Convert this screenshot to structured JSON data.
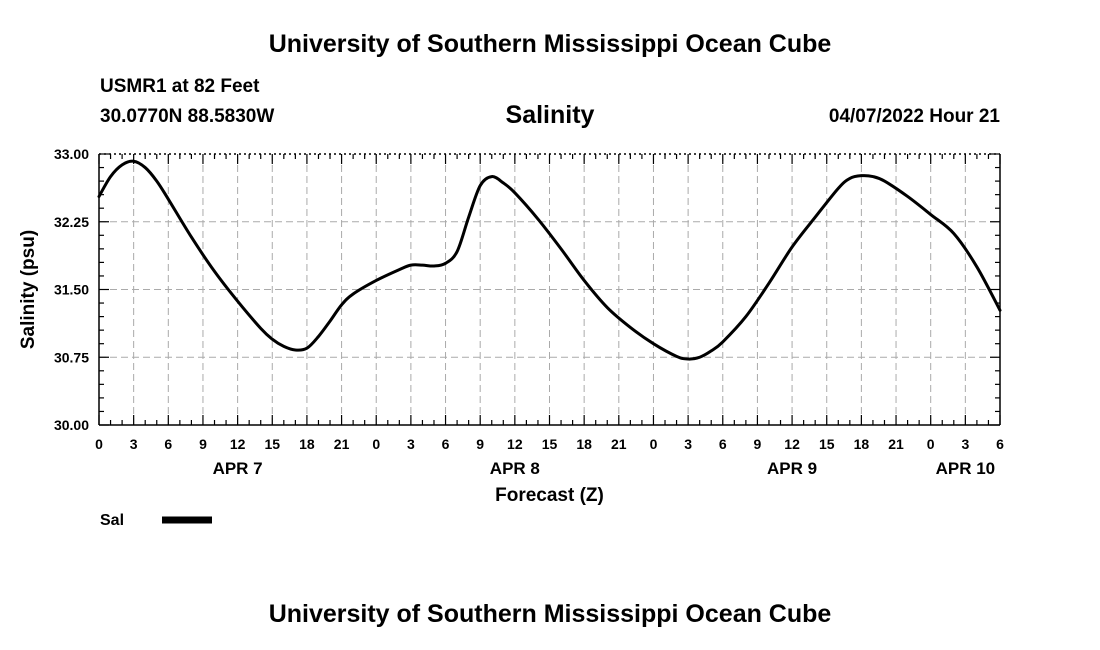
{
  "header": {
    "title": "University of Southern Mississippi Ocean Cube",
    "station": "USMR1 at 82 Feet",
    "coordinates": "30.0770N  88.5830W",
    "chart_title": "Salinity",
    "datetime": "04/07/2022 Hour 21"
  },
  "footer": {
    "title": "University of Southern Mississippi Ocean Cube"
  },
  "chart_data": {
    "type": "line",
    "title": "Salinity",
    "xlabel": "Forecast (Z)",
    "ylabel": "Salinity (psu)",
    "xlim": [
      0,
      78
    ],
    "ylim": [
      30.0,
      33.0
    ],
    "grid": true,
    "y_ticks": [
      "30.00",
      "30.75",
      "31.50",
      "32.25",
      "33.00"
    ],
    "x_tick_labels": [
      "0",
      "3",
      "6",
      "9",
      "12",
      "15",
      "18",
      "21",
      "0",
      "3",
      "6",
      "9",
      "12",
      "15",
      "18",
      "21",
      "0",
      "3",
      "6",
      "9",
      "12",
      "15",
      "18",
      "21",
      "0",
      "3",
      "6"
    ],
    "date_labels": [
      {
        "label": "APR 7",
        "hour": 12
      },
      {
        "label": "APR 8",
        "hour": 36
      },
      {
        "label": "APR 9",
        "hour": 60
      },
      {
        "label": "APR 10",
        "hour": 75
      }
    ],
    "series": [
      {
        "name": "Sal",
        "color": "#000000",
        "x": [
          0,
          1,
          2,
          3,
          4,
          5,
          6,
          8,
          10,
          12,
          14,
          15,
          16,
          17,
          18,
          19,
          20,
          21,
          22,
          24,
          26,
          27,
          28,
          29,
          30,
          31,
          32,
          33,
          34,
          35,
          36,
          38,
          40,
          42,
          44,
          46,
          48,
          50,
          51,
          52,
          53,
          54,
          56,
          58,
          60,
          62,
          64,
          65,
          66,
          67,
          68,
          70,
          72,
          74,
          76,
          78
        ],
        "y": [
          32.53,
          32.75,
          32.88,
          32.92,
          32.85,
          32.7,
          32.5,
          32.08,
          31.7,
          31.37,
          31.07,
          30.95,
          30.87,
          30.83,
          30.85,
          30.98,
          31.15,
          31.33,
          31.45,
          31.6,
          31.72,
          31.77,
          31.77,
          31.76,
          31.79,
          31.92,
          32.3,
          32.65,
          32.75,
          32.68,
          32.57,
          32.28,
          31.95,
          31.6,
          31.3,
          31.08,
          30.9,
          30.76,
          30.73,
          30.75,
          30.82,
          30.92,
          31.2,
          31.57,
          31.97,
          32.3,
          32.62,
          32.73,
          32.76,
          32.75,
          32.7,
          32.53,
          32.33,
          32.12,
          31.75,
          31.27
        ]
      }
    ],
    "legend": {
      "label": "Sal",
      "placement": "bottom-left"
    }
  }
}
